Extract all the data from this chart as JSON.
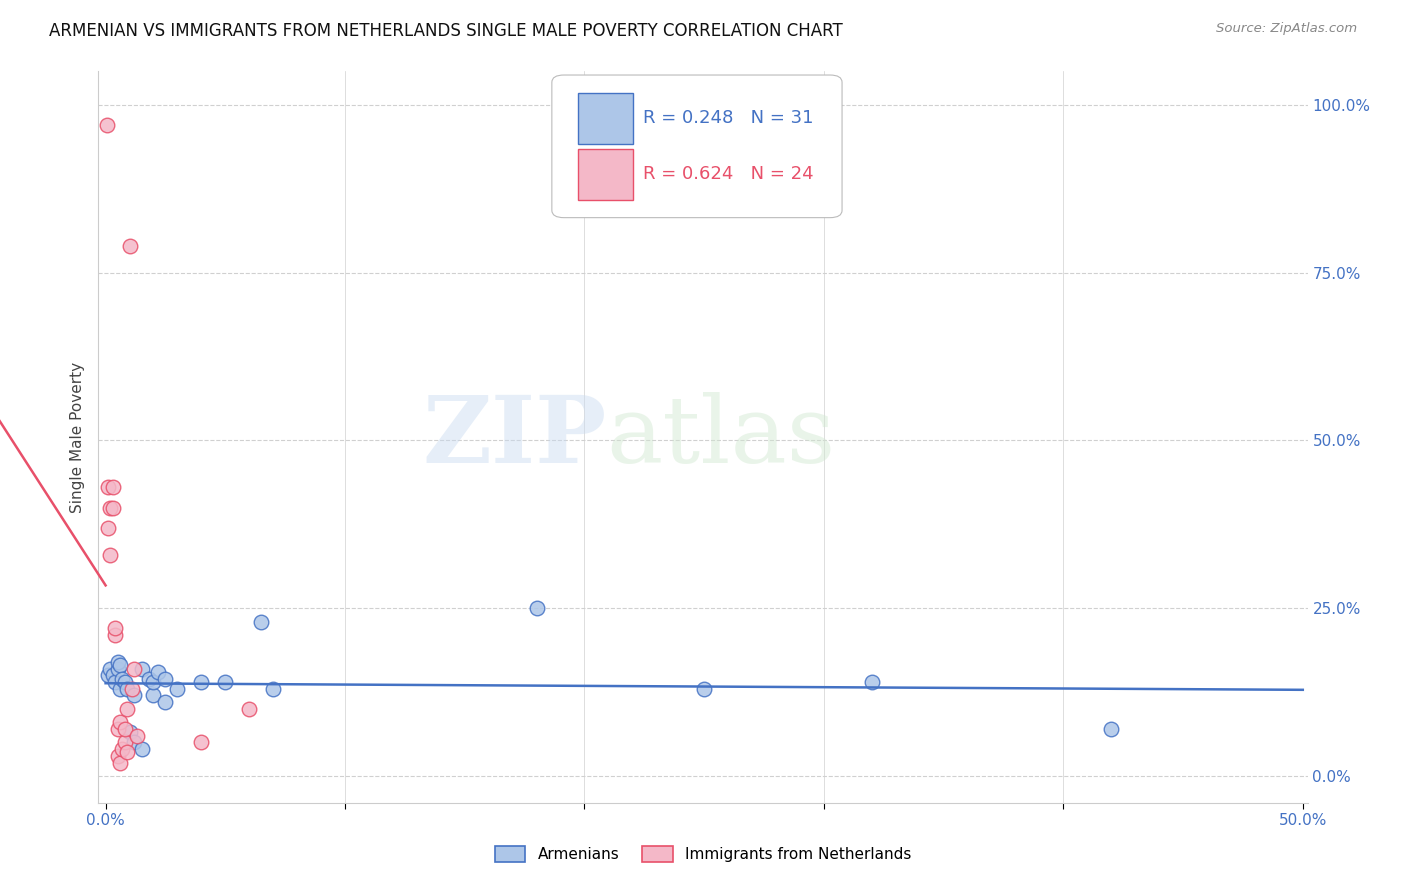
{
  "title": "ARMENIAN VS IMMIGRANTS FROM NETHERLANDS SINGLE MALE POVERTY CORRELATION CHART",
  "source": "Source: ZipAtlas.com",
  "ylabel": "Single Male Poverty",
  "ytick_labels": [
    "0.0%",
    "25.0%",
    "50.0%",
    "75.0%",
    "100.0%"
  ],
  "ytick_values": [
    0.0,
    0.25,
    0.5,
    0.75,
    1.0
  ],
  "xlim": [
    -0.003,
    0.502
  ],
  "ylim": [
    -0.04,
    1.05
  ],
  "legend_armenians": "Armenians",
  "legend_netherlands": "Immigrants from Netherlands",
  "r_armenians": 0.248,
  "n_armenians": 31,
  "r_netherlands": 0.624,
  "n_netherlands": 24,
  "color_armenians": "#adc6e8",
  "color_netherlands": "#f4b8c8",
  "color_armenians_line": "#4472c4",
  "color_netherlands_line": "#e8506a",
  "color_r_armenians": "#4472c4",
  "color_r_netherlands": "#e8506a",
  "watermark_zip": "ZIP",
  "watermark_atlas": "atlas",
  "background_color": "#ffffff",
  "grid_color": "#d0d0d0",
  "armenians_x": [
    0.001,
    0.002,
    0.003,
    0.004,
    0.005,
    0.005,
    0.006,
    0.006,
    0.007,
    0.008,
    0.009,
    0.01,
    0.012,
    0.012,
    0.015,
    0.015,
    0.018,
    0.02,
    0.02,
    0.022,
    0.025,
    0.025,
    0.03,
    0.04,
    0.05,
    0.065,
    0.07,
    0.18,
    0.25,
    0.32,
    0.42
  ],
  "armenians_y": [
    0.15,
    0.16,
    0.15,
    0.14,
    0.16,
    0.17,
    0.13,
    0.165,
    0.145,
    0.14,
    0.13,
    0.065,
    0.05,
    0.12,
    0.04,
    0.16,
    0.145,
    0.12,
    0.14,
    0.155,
    0.11,
    0.145,
    0.13,
    0.14,
    0.14,
    0.23,
    0.13,
    0.25,
    0.13,
    0.14,
    0.07
  ],
  "netherlands_x": [
    0.0005,
    0.001,
    0.001,
    0.002,
    0.002,
    0.003,
    0.003,
    0.004,
    0.004,
    0.005,
    0.005,
    0.006,
    0.006,
    0.007,
    0.008,
    0.008,
    0.009,
    0.009,
    0.01,
    0.011,
    0.012,
    0.013,
    0.04,
    0.06
  ],
  "netherlands_y": [
    0.97,
    0.37,
    0.43,
    0.33,
    0.4,
    0.4,
    0.43,
    0.21,
    0.22,
    0.03,
    0.07,
    0.02,
    0.08,
    0.04,
    0.05,
    0.07,
    0.1,
    0.035,
    0.79,
    0.13,
    0.16,
    0.06,
    0.05,
    0.1
  ]
}
